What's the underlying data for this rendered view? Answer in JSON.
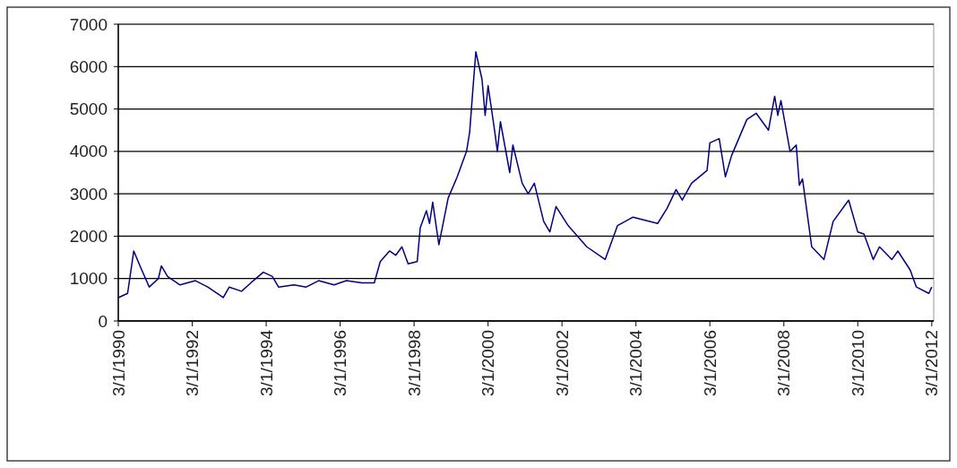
{
  "chart_data": {
    "type": "line",
    "x": [
      "1990-03",
      "1990-06",
      "1990-08",
      "1990-10",
      "1991-01",
      "1991-04",
      "1991-05",
      "1991-07",
      "1991-11",
      "1992-04",
      "1992-08",
      "1993-01",
      "1993-03",
      "1993-07",
      "1993-10",
      "1994-02",
      "1994-05",
      "1994-07",
      "1994-12",
      "1995-04",
      "1995-08",
      "1996-01",
      "1996-05",
      "1996-10",
      "1997-02",
      "1997-04",
      "1997-07",
      "1997-09",
      "1997-11",
      "1998-01",
      "1998-04",
      "1998-05",
      "1998-07",
      "1998-08",
      "1998-09",
      "1998-11",
      "1999-02",
      "1999-05",
      "1999-08",
      "1999-09",
      "1999-10",
      "1999-11",
      "2000-01",
      "2000-02",
      "2000-03",
      "2000-05",
      "2000-06",
      "2000-07",
      "2000-10",
      "2000-11",
      "2001-02",
      "2001-04",
      "2001-06",
      "2001-09",
      "2001-11",
      "2002-01",
      "2002-05",
      "2002-11",
      "2003-05",
      "2003-09",
      "2004-02",
      "2004-10",
      "2005-01",
      "2005-04",
      "2005-06",
      "2005-09",
      "2006-02",
      "2006-03",
      "2006-06",
      "2006-08",
      "2006-10",
      "2007-03",
      "2007-06",
      "2007-10",
      "2007-12",
      "2008-01",
      "2008-02",
      "2008-05",
      "2008-07",
      "2008-08",
      "2008-09",
      "2008-12",
      "2009-04",
      "2009-07",
      "2009-12",
      "2010-03",
      "2010-05",
      "2010-08",
      "2010-10",
      "2011-02",
      "2011-04",
      "2011-08",
      "2011-10",
      "2012-02",
      "2012-03"
    ],
    "series": [
      {
        "color": "#000080",
        "values": [
          550,
          650,
          1650,
          1300,
          800,
          1000,
          1300,
          1050,
          850,
          950,
          800,
          550,
          800,
          700,
          900,
          1150,
          1050,
          800,
          850,
          800,
          950,
          850,
          950,
          900,
          900,
          1400,
          1650,
          1550,
          1750,
          1350,
          1400,
          2200,
          2600,
          2300,
          2800,
          1800,
          2900,
          3400,
          4000,
          4450,
          5400,
          6350,
          5700,
          4850,
          5550,
          4550,
          4000,
          4700,
          3500,
          4150,
          3250,
          3000,
          3250,
          2350,
          2100,
          2700,
          2250,
          1750,
          1450,
          2250,
          2450,
          2300,
          2650,
          3100,
          2850,
          3250,
          3550,
          4200,
          4300,
          3400,
          3900,
          4750,
          4900,
          4500,
          5300,
          4850,
          5200,
          4000,
          4150,
          3200,
          3350,
          1750,
          1450,
          2350,
          2850,
          2100,
          2050,
          1450,
          1750,
          1450,
          1650,
          1200,
          800,
          650,
          800
        ]
      }
    ],
    "xlim": [
      "1990-03-01",
      "2012-03-20"
    ],
    "xticks": [
      {
        "value": "1990-03-01",
        "label": "3/1/1990"
      },
      {
        "value": "1992-03-01",
        "label": "3/1/1992"
      },
      {
        "value": "1994-03-01",
        "label": "3/1/1994"
      },
      {
        "value": "1996-03-01",
        "label": "3/1/1996"
      },
      {
        "value": "1998-03-01",
        "label": "3/1/1998"
      },
      {
        "value": "2000-03-01",
        "label": "3/1/2000"
      },
      {
        "value": "2002-03-01",
        "label": "3/1/2002"
      },
      {
        "value": "2004-03-01",
        "label": "3/1/2004"
      },
      {
        "value": "2006-03-01",
        "label": "3/1/2006"
      },
      {
        "value": "2008-03-01",
        "label": "3/1/2008"
      },
      {
        "value": "2010-03-01",
        "label": "3/1/2010"
      },
      {
        "value": "2012-03-01",
        "label": "3/1/2012"
      }
    ],
    "ylim": [
      0,
      7000
    ],
    "yticks": [
      0,
      1000,
      2000,
      3000,
      4000,
      5000,
      6000,
      7000
    ],
    "grid": "y"
  }
}
